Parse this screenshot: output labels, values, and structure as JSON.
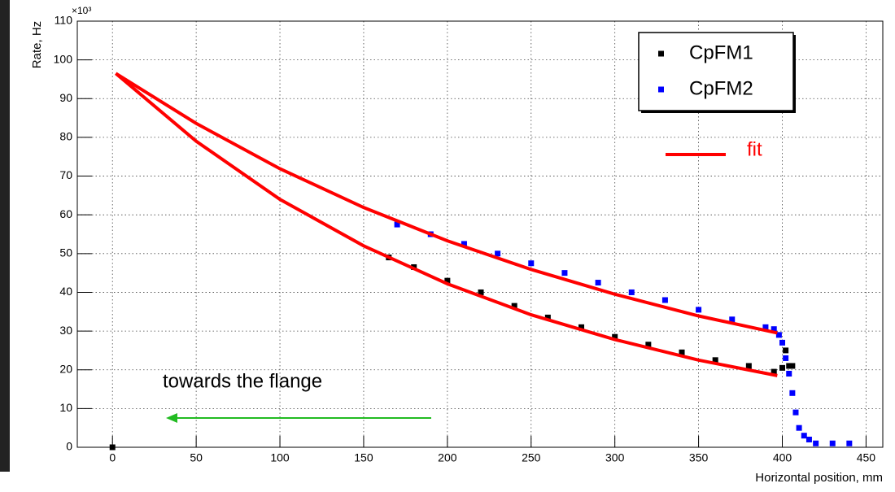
{
  "chart_data": {
    "type": "scatter",
    "y_label": "Rate, Hz",
    "y_multiplier": "×10³",
    "x_label": "Horizontal position, mm",
    "xlim": [
      -21,
      460
    ],
    "ylim": [
      0,
      110
    ],
    "xticks": [
      0,
      50,
      100,
      150,
      200,
      250,
      300,
      350,
      400,
      450
    ],
    "yticks": [
      0,
      10,
      20,
      30,
      40,
      50,
      60,
      70,
      80,
      90,
      100,
      110
    ],
    "grid": true,
    "legend_position": "upper right",
    "series": [
      {
        "name": "CpFM1",
        "color": "#000000",
        "x": [
          0,
          165,
          180,
          200,
          220,
          240,
          260,
          280,
          300,
          320,
          340,
          360,
          380,
          395,
          400,
          402,
          404,
          406
        ],
        "values": [
          0,
          49,
          46.5,
          43,
          40,
          36.5,
          33.5,
          31,
          28.5,
          26.5,
          24.5,
          22.5,
          21,
          19.5,
          20.5,
          25,
          21,
          21
        ]
      },
      {
        "name": "CpFM2",
        "color": "#0000ff",
        "x": [
          170,
          190,
          210,
          230,
          250,
          270,
          290,
          310,
          330,
          350,
          370,
          390,
          395,
          398,
          400,
          402,
          404,
          406,
          408,
          410,
          413,
          416,
          420,
          430,
          440
        ],
        "values": [
          57.5,
          55,
          52.5,
          50,
          47.5,
          45,
          42.5,
          40,
          38,
          35.5,
          33,
          31,
          30.5,
          29,
          27,
          23,
          19,
          14,
          9,
          5,
          3,
          2,
          1,
          1,
          1
        ]
      }
    ],
    "fit_label": "fit",
    "fit_color": "#ff0000",
    "fits": [
      {
        "x": [
          2,
          50,
          100,
          150,
          200,
          250,
          300,
          350,
          397
        ],
        "values": [
          96.5,
          83.6,
          71.9,
          61.9,
          53.3,
          45.9,
          39.5,
          33.9,
          29.5
        ]
      },
      {
        "x": [
          2,
          50,
          100,
          150,
          200,
          250,
          300,
          350,
          397
        ],
        "values": [
          96.5,
          79.0,
          64.0,
          52.0,
          42.2,
          34.2,
          27.8,
          22.5,
          18.5
        ]
      }
    ],
    "annotation": "towards the flange",
    "annotation_color": "#000000"
  }
}
